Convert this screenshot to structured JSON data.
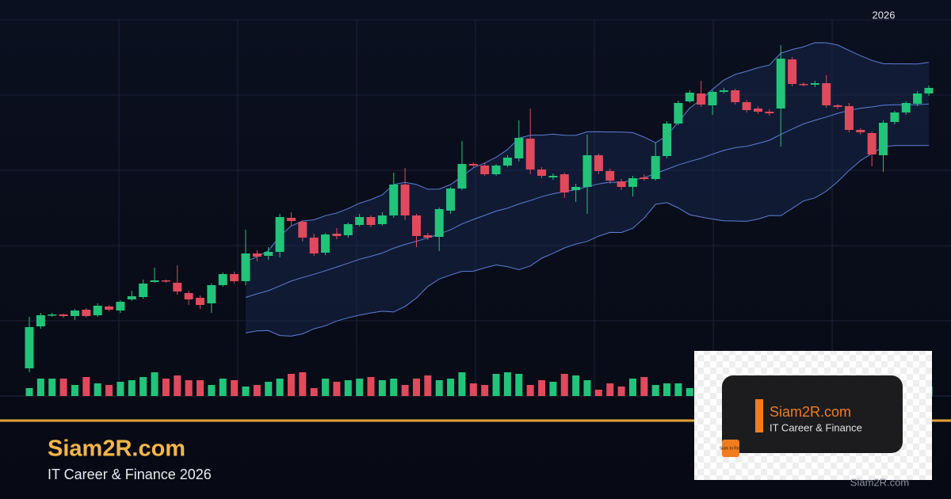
{
  "chart_data": {
    "type": "candlestick",
    "year_label": "2026",
    "open": [
      35,
      88,
      102,
      103,
      101,
      109,
      102,
      113,
      108,
      122,
      125,
      144,
      146,
      143,
      130,
      124,
      117,
      140,
      154,
      145,
      180,
      177,
      182,
      225,
      220,
      200,
      181,
      205,
      203,
      216,
      226,
      217,
      228,
      267,
      228,
      203,
      201,
      234,
      262,
      293,
      291,
      280,
      291,
      300,
      325,
      286,
      276,
      280,
      260,
      264,
      304,
      284,
      271,
      264,
      276,
      274,
      303,
      344,
      372,
      382,
      367,
      384,
      386,
      371,
      363,
      359,
      363,
      425,
      394,
      393,
      395,
      367,
      366,
      336,
      332,
      304,
      346,
      358,
      369,
      382
    ],
    "high": [
      100,
      105,
      105,
      104,
      110,
      111,
      117,
      115,
      121,
      133,
      147,
      162,
      147,
      165,
      133,
      127,
      142,
      156,
      157,
      210,
      184,
      188,
      230,
      232,
      222,
      205,
      206,
      212,
      219,
      230,
      228,
      232,
      282,
      288,
      230,
      206,
      238,
      264,
      322,
      295,
      294,
      293,
      304,
      348,
      363,
      289,
      281,
      282,
      268,
      330,
      306,
      287,
      274,
      278,
      280,
      320,
      347,
      373,
      386,
      398,
      386,
      389,
      388,
      374,
      366,
      362,
      443,
      428,
      396,
      398,
      405,
      369,
      370,
      338,
      334,
      348,
      360,
      372,
      385,
      392
    ],
    "low": [
      30,
      85,
      100,
      99,
      96,
      99,
      100,
      107,
      105,
      120,
      123,
      143,
      143,
      128,
      115,
      110,
      105,
      138,
      142,
      140,
      170,
      172,
      175,
      215,
      195,
      177,
      178,
      198,
      200,
      214,
      213,
      215,
      225,
      222,
      188,
      197,
      183,
      230,
      260,
      289,
      278,
      278,
      289,
      296,
      280,
      275,
      273,
      250,
      245,
      230,
      280,
      268,
      260,
      252,
      272,
      272,
      300,
      342,
      370,
      365,
      355,
      382,
      368,
      358,
      356,
      354,
      315,
      391,
      391,
      390,
      364,
      362,
      333,
      330,
      290,
      283,
      343,
      355,
      366,
      379
    ],
    "close": [
      87,
      102,
      103,
      101,
      108,
      101,
      114,
      109,
      119,
      126,
      142,
      146,
      145,
      132,
      122,
      115,
      140,
      154,
      145,
      180,
      176,
      182,
      226,
      221,
      200,
      180,
      204,
      202,
      217,
      226,
      216,
      228,
      267,
      228,
      202,
      200,
      236,
      262,
      293,
      291,
      280,
      291,
      301,
      326,
      286,
      278,
      278,
      257,
      264,
      304,
      284,
      272,
      264,
      275,
      274,
      303,
      344,
      370,
      383,
      368,
      384,
      386,
      371,
      361,
      359,
      357,
      426,
      394,
      393,
      395,
      367,
      365,
      336,
      333,
      305,
      345,
      358,
      370,
      382,
      389
    ],
    "volume": [
      10,
      22,
      22,
      22,
      14,
      24,
      16,
      14,
      18,
      20,
      24,
      30,
      22,
      26,
      20,
      20,
      14,
      22,
      20,
      12,
      14,
      18,
      22,
      28,
      30,
      10,
      22,
      18,
      20,
      22,
      24,
      20,
      22,
      14,
      22,
      26,
      20,
      22,
      30,
      16,
      14,
      28,
      30,
      28,
      14,
      20,
      18,
      28,
      26,
      20,
      8,
      16,
      12,
      22,
      24,
      14,
      16,
      16,
      10,
      20,
      22,
      14,
      16,
      18,
      20,
      24,
      18,
      16,
      22,
      14,
      18,
      12,
      16,
      18,
      20,
      12,
      14,
      18,
      16,
      12
    ],
    "ylim": [
      0,
      475
    ]
  },
  "brand": {
    "title": "Siam2R.com",
    "subtitle": "IT Career & Finance 2026",
    "watermark": "Siam2R.com"
  },
  "logo_card": {
    "title": "Siam2R.com",
    "subtitle": "IT Career & Finance",
    "badge": "Siam to Rich"
  }
}
